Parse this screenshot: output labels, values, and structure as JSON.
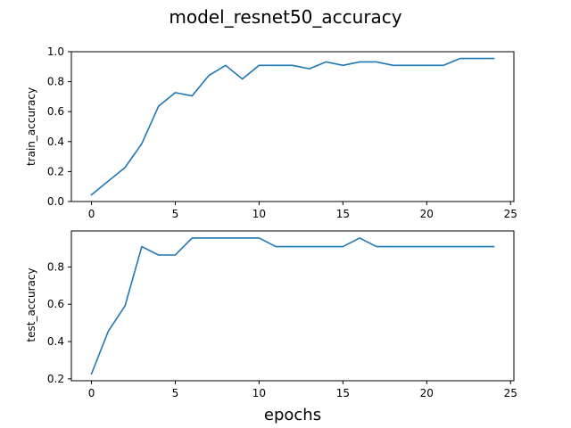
{
  "title": "model_resnet50_accuracy",
  "colors": {
    "line": "#1f77b4"
  },
  "chart_data": [
    {
      "type": "line",
      "xlabel": "",
      "ylabel": "train_accuracy",
      "xlim": [
        -1.2,
        25.2
      ],
      "ylim": [
        0.0,
        1.0
      ],
      "xticks": [
        0,
        5,
        10,
        15,
        20,
        25
      ],
      "yticks": [
        0.0,
        0.2,
        0.4,
        0.6,
        0.8,
        1.0
      ],
      "xticklabels": [
        "0",
        "5",
        "10",
        "15",
        "20",
        "25"
      ],
      "yticklabels": [
        "0.0",
        "0.2",
        "0.4",
        "0.6",
        "0.8",
        "1.0"
      ],
      "grid": false,
      "x": [
        0,
        1,
        2,
        3,
        4,
        5,
        6,
        7,
        8,
        9,
        10,
        11,
        12,
        13,
        14,
        15,
        16,
        17,
        18,
        19,
        20,
        21,
        22,
        23,
        24
      ],
      "y": [
        0.045,
        0.136,
        0.227,
        0.386,
        0.636,
        0.727,
        0.705,
        0.841,
        0.909,
        0.818,
        0.909,
        0.909,
        0.909,
        0.886,
        0.932,
        0.909,
        0.932,
        0.932,
        0.909,
        0.909,
        0.909,
        0.909,
        0.955,
        0.955,
        0.955
      ]
    },
    {
      "type": "line",
      "xlabel": "epochs",
      "ylabel": "test_accuracy",
      "xlim": [
        -1.2,
        25.2
      ],
      "ylim": [
        0.19,
        0.993
      ],
      "xticks": [
        0,
        5,
        10,
        15,
        20,
        25
      ],
      "yticks": [
        0.2,
        0.4,
        0.6,
        0.8
      ],
      "xticklabels": [
        "0",
        "5",
        "10",
        "15",
        "20",
        "25"
      ],
      "yticklabels": [
        "0.2",
        "0.4",
        "0.6",
        "0.8"
      ],
      "grid": false,
      "x": [
        0,
        1,
        2,
        3,
        4,
        5,
        6,
        7,
        8,
        9,
        10,
        11,
        12,
        13,
        14,
        15,
        16,
        17,
        18,
        19,
        20,
        21,
        22,
        23,
        24
      ],
      "y": [
        0.227,
        0.455,
        0.591,
        0.909,
        0.864,
        0.864,
        0.955,
        0.955,
        0.955,
        0.955,
        0.955,
        0.909,
        0.909,
        0.909,
        0.909,
        0.909,
        0.955,
        0.909,
        0.909,
        0.909,
        0.909,
        0.909,
        0.909,
        0.909,
        0.909
      ]
    }
  ]
}
